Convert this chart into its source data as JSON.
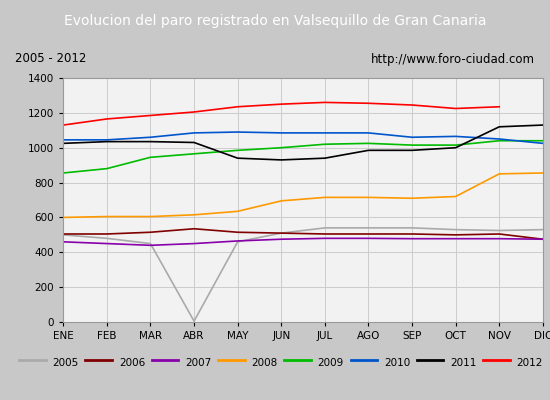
{
  "title": "Evolucion del paro registrado en Valsequillo de Gran Canaria",
  "subtitle_left": "2005 - 2012",
  "subtitle_right": "http://www.foro-ciudad.com",
  "xlabel_months": [
    "ENE",
    "FEB",
    "MAR",
    "ABR",
    "MAY",
    "JUN",
    "JUL",
    "AGO",
    "SEP",
    "OCT",
    "NOV",
    "DIC"
  ],
  "ylim": [
    0,
    1400
  ],
  "yticks": [
    0,
    200,
    400,
    600,
    800,
    1000,
    1200,
    1400
  ],
  "series": {
    "2005": {
      "color": "#aaaaaa",
      "data": [
        500,
        480,
        450,
        5,
        460,
        510,
        540,
        540,
        540,
        530,
        525,
        530
      ]
    },
    "2006": {
      "color": "#800000",
      "data": [
        505,
        505,
        515,
        535,
        515,
        510,
        505,
        505,
        505,
        500,
        505,
        475
      ]
    },
    "2007": {
      "color": "#8800aa",
      "data": [
        460,
        450,
        440,
        450,
        465,
        475,
        480,
        480,
        478,
        478,
        478,
        475
      ]
    },
    "2008": {
      "color": "#ff9900",
      "data": [
        600,
        605,
        605,
        615,
        635,
        695,
        715,
        715,
        710,
        720,
        850,
        855
      ]
    },
    "2009": {
      "color": "#00bb00",
      "data": [
        855,
        880,
        945,
        965,
        985,
        1000,
        1020,
        1025,
        1015,
        1015,
        1040,
        1040
      ]
    },
    "2010": {
      "color": "#0055cc",
      "data": [
        1045,
        1045,
        1060,
        1085,
        1090,
        1085,
        1085,
        1085,
        1060,
        1065,
        1050,
        1025
      ]
    },
    "2011": {
      "color": "#000000",
      "data": [
        1025,
        1035,
        1035,
        1030,
        940,
        930,
        940,
        985,
        985,
        1000,
        1120,
        1130
      ]
    },
    "2012": {
      "color": "#ff0000",
      "data": [
        1130,
        1165,
        1185,
        1205,
        1235,
        1250,
        1260,
        1255,
        1245,
        1225,
        1235,
        null
      ]
    }
  },
  "bg_plot": "#f2f2f2",
  "bg_title": "#4472c4",
  "bg_subtitle": "#e8e8e8",
  "bg_legend": "#e8e8e8",
  "grid_color": "#cccccc",
  "fig_bg": "#c8c8c8"
}
